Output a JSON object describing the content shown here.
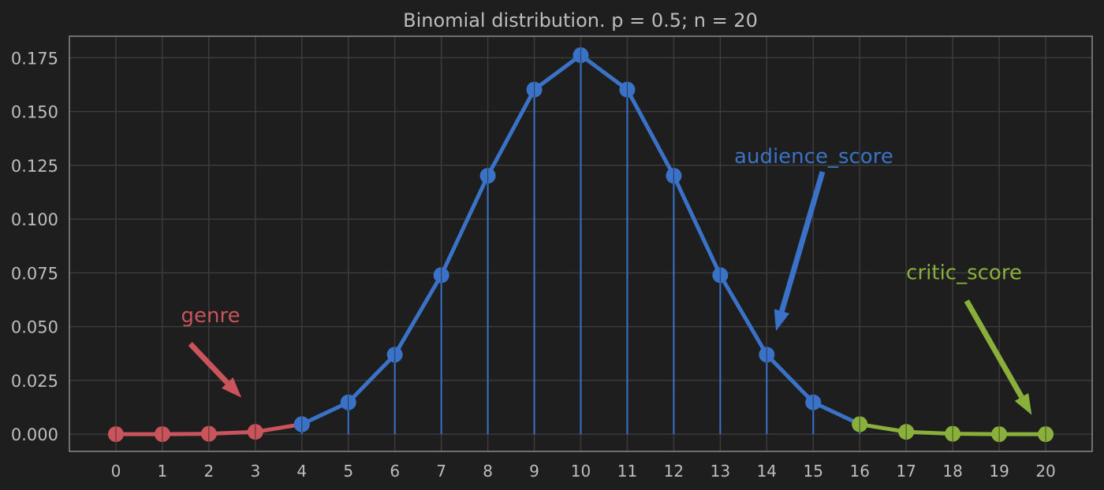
{
  "chart_data": {
    "type": "line",
    "title": "Binomial distribution. p = 0.5; n = 20",
    "xlabel": "",
    "ylabel": "",
    "x": [
      0,
      1,
      2,
      3,
      4,
      5,
      6,
      7,
      8,
      9,
      10,
      11,
      12,
      13,
      14,
      15,
      16,
      17,
      18,
      19,
      20
    ],
    "xlim": [
      -1,
      21
    ],
    "ylim": [
      -0.008,
      0.185
    ],
    "x_ticks": [
      "0",
      "1",
      "2",
      "3",
      "4",
      "5",
      "6",
      "7",
      "8",
      "9",
      "10",
      "11",
      "12",
      "13",
      "14",
      "15",
      "16",
      "17",
      "18",
      "19",
      "20"
    ],
    "y_ticks": [
      "0.000",
      "0.025",
      "0.050",
      "0.075",
      "0.100",
      "0.125",
      "0.150",
      "0.175"
    ],
    "y_tick_values": [
      0,
      0.025,
      0.05,
      0.075,
      0.1,
      0.125,
      0.15,
      0.175
    ],
    "grid": true,
    "series": [
      {
        "name": "genre",
        "color": "#c9545c",
        "x": [
          0,
          1,
          2,
          3,
          4
        ],
        "values": [
          1e-06,
          1.9e-05,
          0.000181,
          0.001087,
          0.004621
        ]
      },
      {
        "name": "audience_score",
        "color": "#3a72c7",
        "x": [
          4,
          5,
          6,
          7,
          8,
          9,
          10,
          11,
          12,
          13,
          14,
          15,
          16
        ],
        "values": [
          0.004621,
          0.014786,
          0.036964,
          0.073929,
          0.120134,
          0.160179,
          0.176197,
          0.160179,
          0.120134,
          0.073929,
          0.036964,
          0.014786,
          0.004621
        ]
      },
      {
        "name": "critic_score",
        "color": "#8ab03c",
        "x": [
          16,
          17,
          18,
          19,
          20
        ],
        "values": [
          0.004621,
          0.001087,
          0.000181,
          1.9e-05,
          1e-06
        ]
      }
    ],
    "stems": {
      "x": [
        4,
        5,
        6,
        7,
        8,
        9,
        10,
        11,
        12,
        13,
        14,
        15,
        16
      ],
      "values": [
        0.004621,
        0.014786,
        0.036964,
        0.073929,
        0.120134,
        0.160179,
        0.176197,
        0.160179,
        0.120134,
        0.073929,
        0.036964,
        0.014786,
        0.004621
      ],
      "color": "#3a72c7"
    },
    "annotations": [
      {
        "text": "genre",
        "color": "#c9545c",
        "text_at": [
          1.4,
          0.052
        ],
        "arrow_from": [
          1.6,
          0.042
        ],
        "arrow_to": [
          2.7,
          0.017
        ]
      },
      {
        "text": "audience_score",
        "color": "#3a72c7",
        "text_at": [
          13.3,
          0.126
        ],
        "arrow_from": [
          15.2,
          0.122
        ],
        "arrow_to": [
          14.2,
          0.048
        ]
      },
      {
        "text": "critic_score",
        "color": "#8ab03c",
        "text_at": [
          17.0,
          0.072
        ],
        "arrow_from": [
          18.3,
          0.062
        ],
        "arrow_to": [
          19.7,
          0.009
        ]
      }
    ]
  }
}
